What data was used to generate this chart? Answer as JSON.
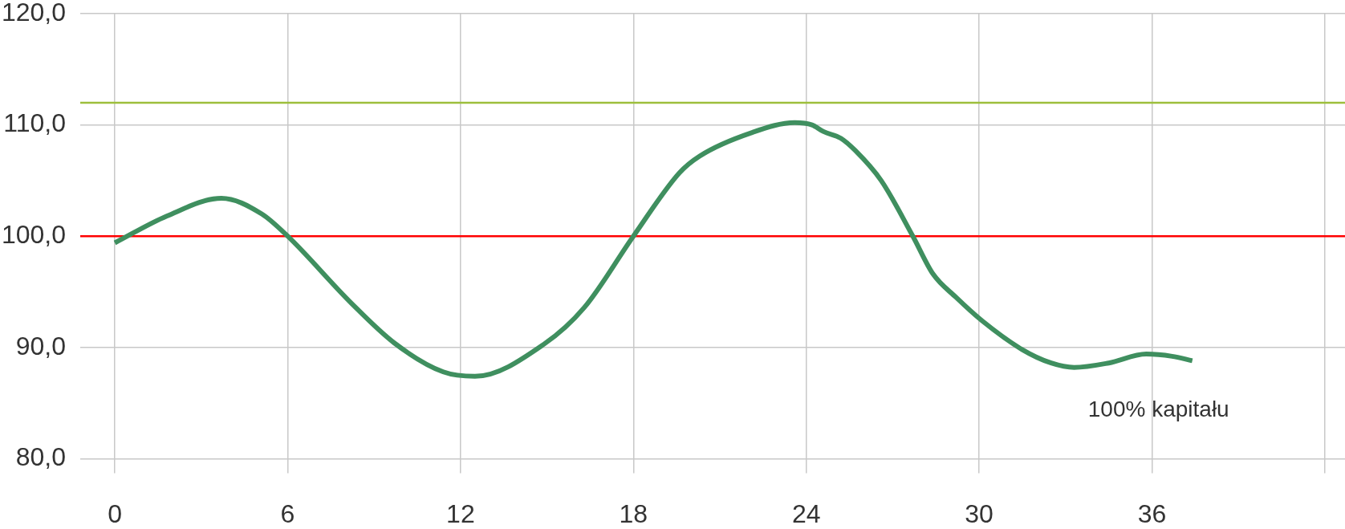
{
  "chart_data": {
    "type": "line",
    "x": [
      0,
      1.8,
      3.7,
      5.1,
      6,
      8.2,
      9.7,
      11.4,
      12.5,
      14.9,
      16.3,
      18,
      19.6,
      20.3,
      22.1,
      23.6,
      24.2,
      24.6,
      25.2,
      25.7,
      26.6,
      27.7,
      28.4,
      29.2,
      30.1,
      31.5,
      32.5,
      33.3,
      34.5,
      35.8,
      36.7,
      37.4
    ],
    "series": [
      {
        "name": "100% kapitału",
        "color": "#3f8f5f",
        "values": [
          99.4,
          101.8,
          103.4,
          102.0,
          100,
          94.0,
          90.4,
          87.8,
          87.4,
          90.3,
          93.6,
          100,
          105.7,
          107.2,
          109.3,
          110.2,
          110.0,
          109.4,
          108.8,
          107.7,
          105.0,
          100,
          96.6,
          94.5,
          92.4,
          89.8,
          88.6,
          88.2,
          88.6,
          89.4,
          89.2,
          88.8
        ]
      }
    ],
    "xlim": [
      -1.2,
      42.7
    ],
    "ylim": [
      80,
      120
    ],
    "xticks": [
      0,
      6,
      12,
      18,
      24,
      30,
      36,
      {
        "value": 42,
        "label": null
      }
    ],
    "yticks": [
      {
        "value": 80,
        "label": "80,0"
      },
      {
        "value": 90,
        "label": "90,0"
      },
      {
        "value": 100,
        "label": "100,0"
      },
      {
        "value": 110,
        "label": "110,0"
      },
      {
        "value": 120,
        "label": "120,0"
      }
    ],
    "ref_lines": [
      {
        "axis": "y",
        "value": 112,
        "color": "#9dbf3c"
      },
      {
        "axis": "y",
        "value": 100,
        "color": "#ff0000"
      }
    ],
    "grid": true,
    "legend": false,
    "marker": "none",
    "line_style": "solid"
  }
}
